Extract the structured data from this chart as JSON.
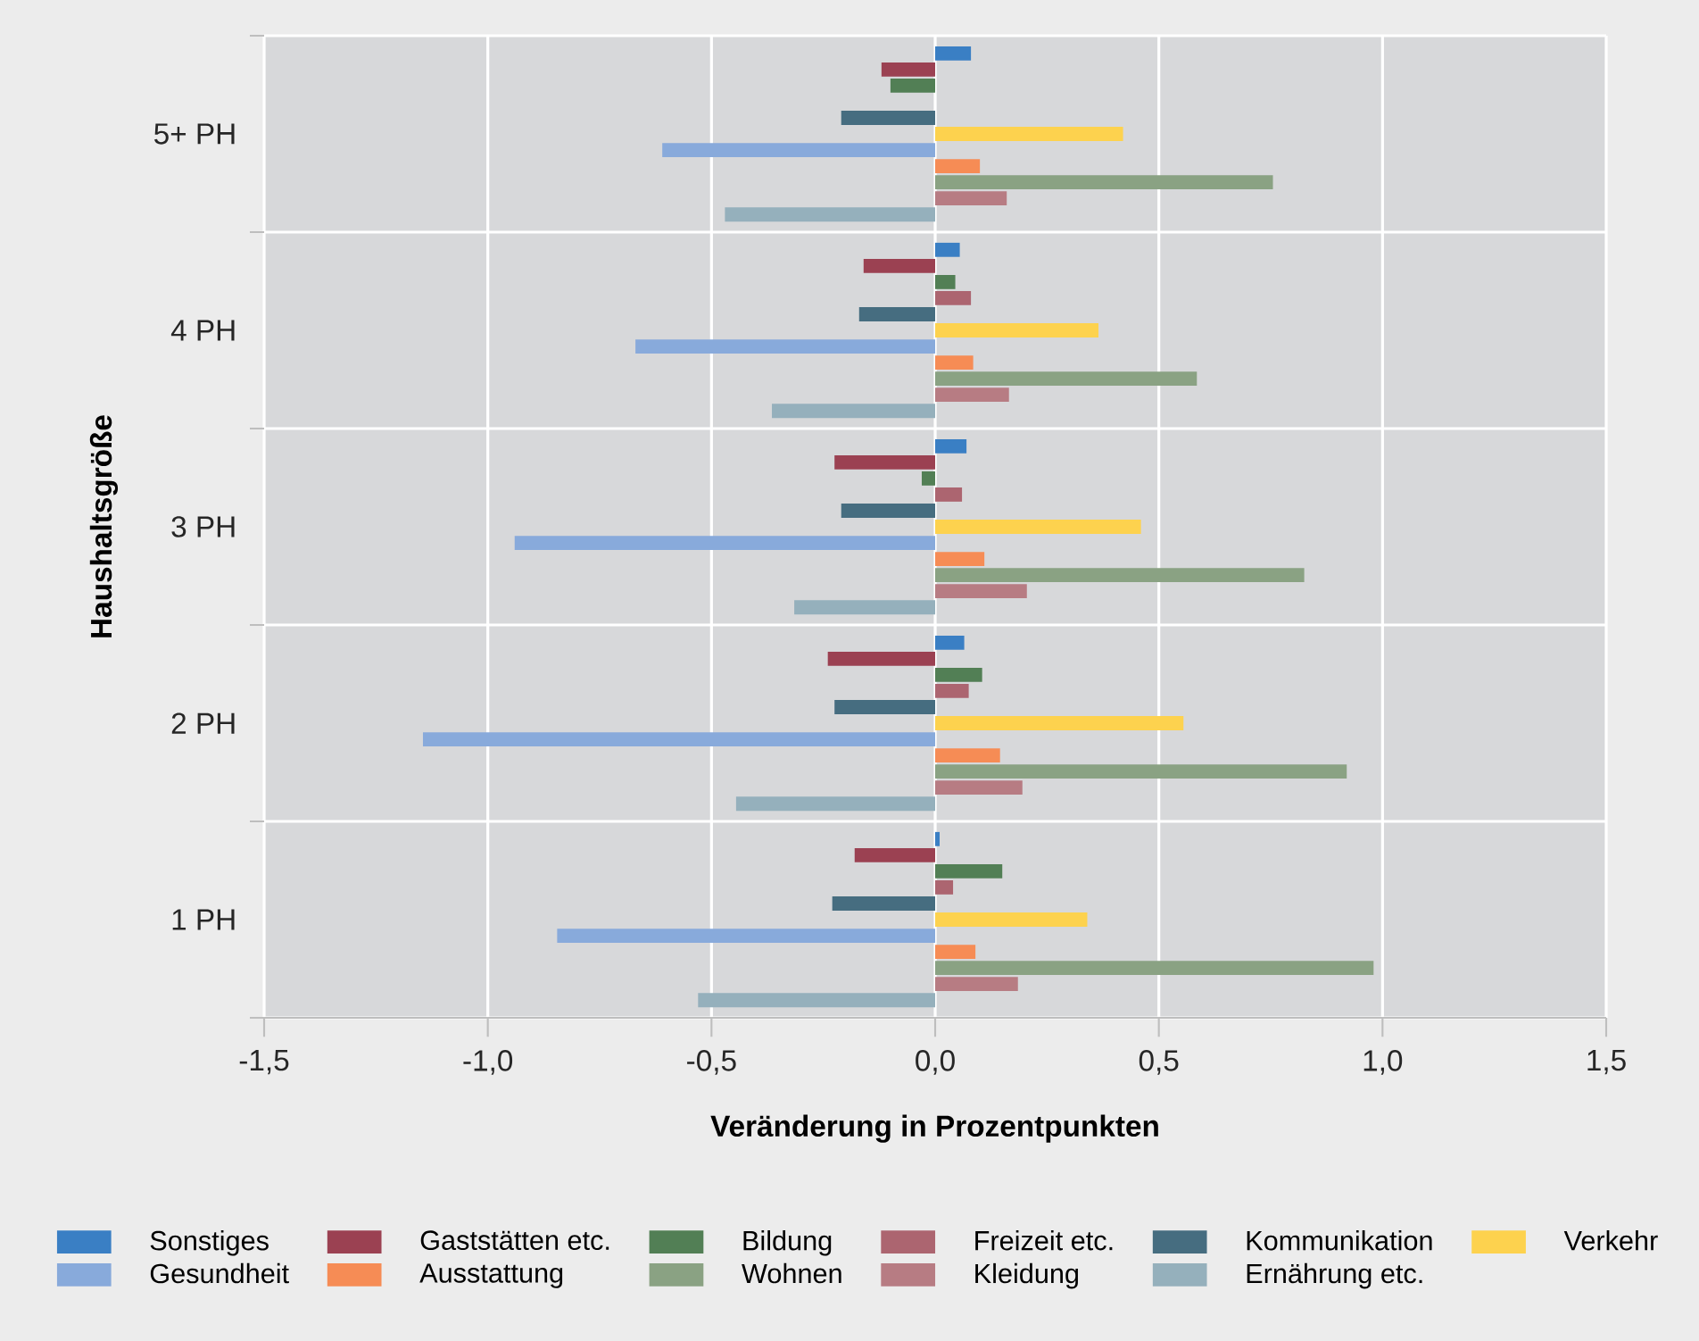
{
  "chart_data": {
    "type": "bar",
    "orientation": "horizontal",
    "xlabel": "Veränderung in Prozentpunkten",
    "ylabel": "Haushaltsgröße",
    "categories": [
      "5+ PH",
      "4 PH",
      "3 PH",
      "2 PH",
      "1 PH"
    ],
    "series": [
      {
        "name": "Sonstiges",
        "color": "#3a7fc4",
        "values": [
          0.08,
          0.055,
          0.07,
          0.065,
          0.01
        ]
      },
      {
        "name": "Gaststätten etc.",
        "color": "#9b4152",
        "values": [
          -0.12,
          -0.16,
          -0.225,
          -0.24,
          -0.18
        ]
      },
      {
        "name": "Bildung",
        "color": "#527f55",
        "values": [
          -0.1,
          0.045,
          -0.03,
          0.105,
          0.15
        ]
      },
      {
        "name": "Freizeit etc.",
        "color": "#ac6570",
        "values": [
          0.0,
          0.08,
          0.06,
          0.075,
          0.04
        ]
      },
      {
        "name": "Kommunikation",
        "color": "#466d80",
        "values": [
          -0.21,
          -0.17,
          -0.21,
          -0.225,
          -0.23
        ]
      },
      {
        "name": "Verkehr",
        "color": "#fdd24e",
        "values": [
          0.42,
          0.365,
          0.46,
          0.555,
          0.34
        ]
      },
      {
        "name": "Gesundheit",
        "color": "#88aadb",
        "values": [
          -0.61,
          -0.67,
          -0.94,
          -1.145,
          -0.845
        ]
      },
      {
        "name": "Ausstattung",
        "color": "#f68c55",
        "values": [
          0.1,
          0.085,
          0.11,
          0.145,
          0.09
        ]
      },
      {
        "name": "Wohnen",
        "color": "#8aa283",
        "values": [
          0.755,
          0.585,
          0.825,
          0.92,
          0.98
        ]
      },
      {
        "name": "Kleidung",
        "color": "#b77c83",
        "values": [
          0.16,
          0.165,
          0.205,
          0.195,
          0.185
        ]
      },
      {
        "name": "Ernährung etc.",
        "color": "#95b0bc",
        "values": [
          -0.47,
          -0.365,
          -0.315,
          -0.445,
          -0.53
        ]
      }
    ],
    "xlim": [
      -1.5,
      1.5
    ],
    "xticks": [
      {
        "value": -1.5,
        "label": "-1,5"
      },
      {
        "value": -1.0,
        "label": "-1,0"
      },
      {
        "value": -0.5,
        "label": "-0,5"
      },
      {
        "value": 0.0,
        "label": "0,0"
      },
      {
        "value": 0.5,
        "label": "0,5"
      },
      {
        "value": 1.0,
        "label": "1,0"
      },
      {
        "value": 1.5,
        "label": "1,5"
      }
    ],
    "grid": "x",
    "legend": "bottom"
  }
}
